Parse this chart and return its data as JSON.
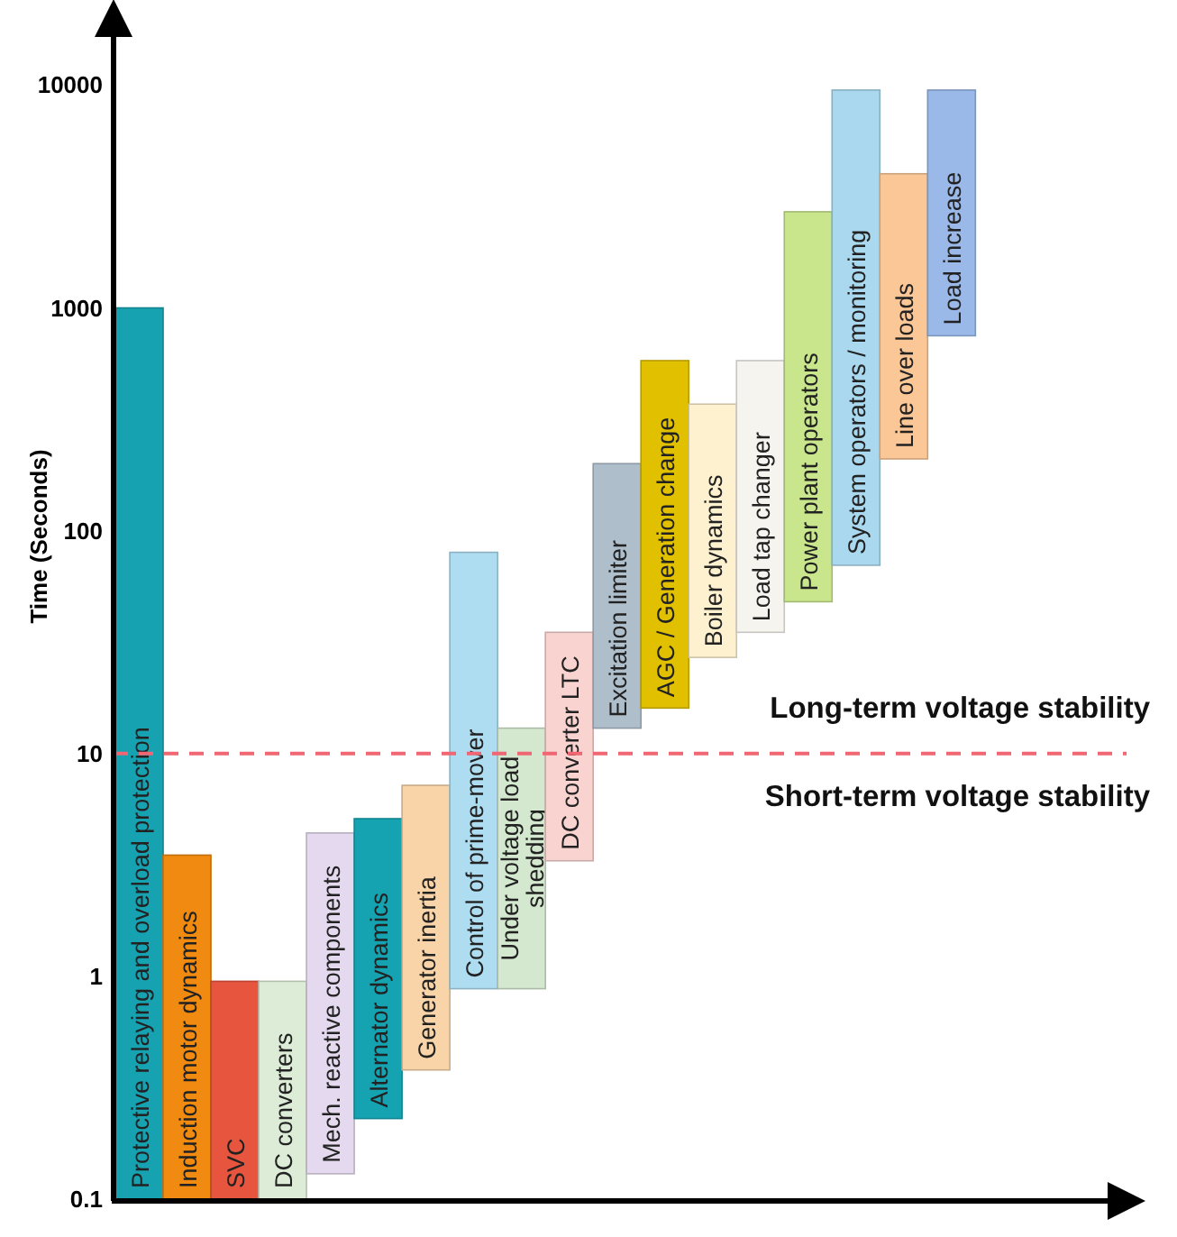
{
  "chart_data": {
    "type": "bar",
    "ylabel": "Time (Seconds)",
    "log": "y",
    "ylim": [
      0.1,
      20000
    ],
    "yticks": [
      0.1,
      1,
      10,
      100,
      1000,
      10000
    ],
    "grid": false,
    "categories": [
      "Protective relaying and overload protection",
      "Induction motor dynamics",
      "SVC",
      "DC converters",
      "Mech. reactive components",
      "Alternator dynamics",
      "Generator inertia",
      "Control of prime-mover",
      "Under voltage load shedding",
      "DC converter LTC",
      "Excitation limiter",
      "AGC / Generation change",
      "Boiler dynamics",
      "Load tap changer",
      "Power plant operators",
      "System operators / monitoring",
      "Line over loads",
      "Load increase"
    ],
    "base": [
      0.1,
      0.1,
      0.1,
      0.1,
      0.13,
      0.23,
      0.38,
      0.88,
      0.88,
      3.3,
      13,
      16,
      27,
      35,
      48,
      70,
      210,
      750
    ],
    "values": [
      999.9,
      3.4,
      0.85,
      0.85,
      4.27,
      4.87,
      6.82,
      79.12,
      12.12,
      31.7,
      187,
      564,
      343,
      545,
      2652,
      9430,
      3790,
      8750
    ],
    "colors": [
      "#17a2b1",
      "#f08a10",
      "#e8553e",
      "#dcecd6",
      "#e4d9ee",
      "#15a3b2",
      "#f9d4a8",
      "#aedcf0",
      "#d4e8cf",
      "#f8d3d0",
      "#afbecb",
      "#e1c000",
      "#fdf1cf",
      "#f6f4ee",
      "#c9e68c",
      "#aad9ef",
      "#fcc797",
      "#9ab8e8"
    ],
    "ref_lines": [
      {
        "axis": "y",
        "value": 10,
        "color": "#f06672",
        "line_style": "dashed"
      }
    ],
    "annotations": [
      "Long-term voltage stability",
      "Short-term voltage stability"
    ]
  }
}
